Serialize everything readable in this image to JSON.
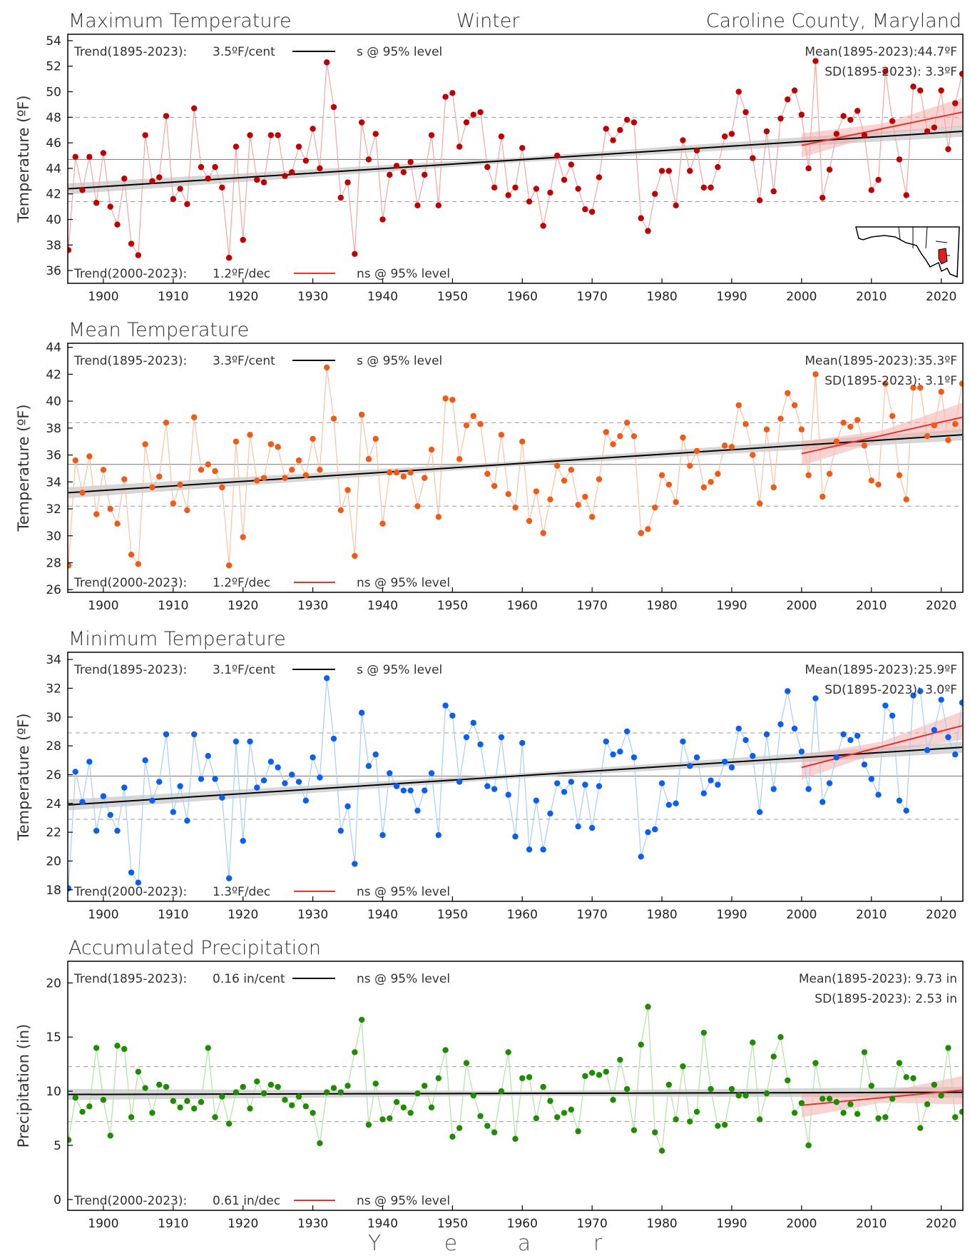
{
  "header": {
    "season": "Winter",
    "location": "Caroline County, Maryland"
  },
  "xlabel_letters": [
    "Y",
    "e",
    "a",
    "r"
  ],
  "chart_data": [
    {
      "type": "line",
      "title": "Maximum Temperature",
      "ylabel": "Temperature (ºF)",
      "ylim": [
        35,
        54.5
      ],
      "yticks": [
        36,
        38,
        40,
        42,
        44,
        46,
        48,
        50,
        52,
        54
      ],
      "xlim": [
        1895,
        2023
      ],
      "xticks": [
        1900,
        1910,
        1920,
        1930,
        1940,
        1950,
        1960,
        1970,
        1980,
        1990,
        2000,
        2010,
        2020
      ],
      "color": "#c00000",
      "line_color": "#f2a6a6",
      "start_year": 1895,
      "mean": 44.7,
      "sd": 3.3,
      "trend_long": {
        "label": "Trend(1895-2023):",
        "value": "3.5ºF/cent",
        "sig": "s @ 95% level",
        "y_start": 42.4,
        "y_end": 46.9
      },
      "trend_short": {
        "label": "Trend(2000-2023):",
        "value": "1.2ºF/dec",
        "sig": "ns @ 95% level",
        "y_start": 45.8,
        "y_end": 48.4
      },
      "mean_text": "Mean(1895-2023):44.7ºF",
      "sd_text": "SD(1895-2023): 3.3ºF",
      "show_map": true,
      "values": [
        37.6,
        44.9,
        42.3,
        44.9,
        41.3,
        45.2,
        41.0,
        39.6,
        43.2,
        38.1,
        37.2,
        46.6,
        43.0,
        43.3,
        48.1,
        41.6,
        42.4,
        41.2,
        48.7,
        44.1,
        43.2,
        44.1,
        42.5,
        37.0,
        45.7,
        38.4,
        46.6,
        43.1,
        42.9,
        46.6,
        46.6,
        43.4,
        43.7,
        45.7,
        44.6,
        47.1,
        44.0,
        52.3,
        48.8,
        41.7,
        42.9,
        37.3,
        47.6,
        44.7,
        46.7,
        40.0,
        43.5,
        44.2,
        43.7,
        44.5,
        41.1,
        43.5,
        46.6,
        41.1,
        49.6,
        49.9,
        45.7,
        47.6,
        48.2,
        48.4,
        44.1,
        42.5,
        46.5,
        41.9,
        42.5,
        45.6,
        41.4,
        42.4,
        39.5,
        42.1,
        45.0,
        43.1,
        44.3,
        42.4,
        40.8,
        40.6,
        43.3,
        47.1,
        46.2,
        47.0,
        47.8,
        47.6,
        40.1,
        39.1,
        42.0,
        43.8,
        43.8,
        41.1,
        46.2,
        43.8,
        45.4,
        42.5,
        42.5,
        44.1,
        46.5,
        46.7,
        50.0,
        48.4,
        44.8,
        41.5,
        46.9,
        42.2,
        47.9,
        49.4,
        50.1,
        48.2,
        44.0,
        52.4,
        41.7,
        43.9,
        46.7,
        48.1,
        47.8,
        48.5,
        46.6,
        42.3,
        43.1,
        51.6,
        47.7,
        44.7,
        41.9,
        50.4,
        50.1,
        46.9,
        47.2,
        50.1,
        45.5,
        49.1,
        51.4
      ]
    },
    {
      "type": "line",
      "title": "Mean Temperature",
      "ylabel": "Temperature (ºF)",
      "ylim": [
        25.8,
        44.3
      ],
      "yticks": [
        26,
        28,
        30,
        32,
        34,
        36,
        38,
        40,
        42,
        44
      ],
      "xlim": [
        1895,
        2023
      ],
      "xticks": [
        1900,
        1910,
        1920,
        1930,
        1940,
        1950,
        1960,
        1970,
        1980,
        1990,
        2000,
        2010,
        2020
      ],
      "color": "#f05a14",
      "line_color": "#f9c2a6",
      "start_year": 1895,
      "mean": 35.3,
      "sd": 3.1,
      "trend_long": {
        "label": "Trend(1895-2023):",
        "value": "3.3ºF/cent",
        "sig": "s @ 95% level",
        "y_start": 33.2,
        "y_end": 37.5
      },
      "trend_short": {
        "label": "Trend(2000-2023):",
        "value": "1.2ºF/dec",
        "sig": "ns @ 95% level",
        "y_start": 36.1,
        "y_end": 38.8
      },
      "mean_text": "Mean(1895-2023):35.3ºF",
      "sd_text": "SD(1895-2023): 3.1ºF",
      "show_map": false,
      "values": [
        27.8,
        35.6,
        33.2,
        35.9,
        31.6,
        34.9,
        32.0,
        30.9,
        34.2,
        28.6,
        27.9,
        36.8,
        33.6,
        34.4,
        38.4,
        32.4,
        33.8,
        31.9,
        38.8,
        34.9,
        35.3,
        34.8,
        33.6,
        27.8,
        37.0,
        29.9,
        37.5,
        34.1,
        34.3,
        36.8,
        36.6,
        34.3,
        34.9,
        35.6,
        34.5,
        37.2,
        34.9,
        42.5,
        38.7,
        31.9,
        33.4,
        28.5,
        39.0,
        35.7,
        37.2,
        30.9,
        34.7,
        34.7,
        34.4,
        34.7,
        32.2,
        34.3,
        36.4,
        31.4,
        40.2,
        40.1,
        35.7,
        38.2,
        38.9,
        38.3,
        34.6,
        33.7,
        37.5,
        33.1,
        32.1,
        37.0,
        31.1,
        33.3,
        30.2,
        32.7,
        35.2,
        34.1,
        34.9,
        32.3,
        32.9,
        31.4,
        34.2,
        37.7,
        36.8,
        37.4,
        38.4,
        37.4,
        30.2,
        30.5,
        32.1,
        34.5,
        33.8,
        32.5,
        37.3,
        35.2,
        36.3,
        33.6,
        34.0,
        34.6,
        36.7,
        36.6,
        39.7,
        38.3,
        36.0,
        32.4,
        37.9,
        33.6,
        38.7,
        40.6,
        39.7,
        37.9,
        34.5,
        42.0,
        32.9,
        34.6,
        37.0,
        38.4,
        38.1,
        38.6,
        36.7,
        34.1,
        33.8,
        41.3,
        38.9,
        34.5,
        32.7,
        41.0,
        41.0,
        37.4,
        38.2,
        40.7,
        37.1,
        38.3,
        41.3
      ]
    },
    {
      "type": "line",
      "title": "Minimum Temperature",
      "ylabel": "Temperature (ºF)",
      "ylim": [
        17.2,
        34.5
      ],
      "yticks": [
        18,
        20,
        22,
        24,
        26,
        28,
        30,
        32,
        34
      ],
      "xlim": [
        1895,
        2023
      ],
      "xticks": [
        1900,
        1910,
        1920,
        1930,
        1940,
        1950,
        1960,
        1970,
        1980,
        1990,
        2000,
        2010,
        2020
      ],
      "color": "#0a5ff0",
      "line_color": "#a9cdf3",
      "start_year": 1895,
      "mean": 25.9,
      "sd": 3.0,
      "trend_long": {
        "label": "Trend(1895-2023):",
        "value": "3.1ºF/cent",
        "sig": "s @ 95% level",
        "y_start": 23.9,
        "y_end": 27.9
      },
      "trend_short": {
        "label": "Trend(2000-2023):",
        "value": "1.3ºF/dec",
        "sig": "ns @ 95% level",
        "y_start": 26.5,
        "y_end": 29.4
      },
      "mean_text": "Mean(1895-2023):25.9ºF",
      "sd_text": "SD(1895-2023): 3.0ºF",
      "show_map": false,
      "values": [
        18.1,
        26.2,
        24.1,
        26.9,
        22.1,
        24.5,
        23.2,
        22.1,
        25.1,
        19.2,
        18.5,
        27.0,
        24.2,
        25.5,
        28.8,
        23.4,
        25.2,
        22.8,
        28.8,
        25.7,
        27.3,
        25.7,
        24.4,
        18.8,
        28.3,
        21.4,
        28.3,
        25.1,
        25.6,
        26.9,
        26.5,
        25.4,
        26.0,
        25.5,
        24.2,
        27.2,
        25.8,
        32.7,
        28.5,
        22.1,
        23.8,
        19.8,
        30.3,
        26.6,
        27.4,
        21.8,
        26.1,
        25.2,
        24.9,
        24.9,
        23.5,
        24.9,
        26.1,
        21.8,
        30.8,
        30.1,
        25.5,
        28.6,
        29.6,
        28.1,
        25.2,
        25.0,
        28.6,
        24.6,
        21.7,
        28.2,
        20.8,
        24.2,
        20.8,
        23.3,
        25.4,
        24.8,
        25.5,
        22.4,
        25.3,
        22.3,
        25.2,
        28.3,
        27.4,
        27.6,
        29.0,
        27.2,
        20.3,
        22.0,
        22.2,
        25.4,
        23.9,
        24.0,
        28.3,
        26.6,
        27.2,
        24.7,
        25.6,
        25.3,
        26.9,
        26.5,
        29.2,
        28.4,
        27.3,
        23.4,
        28.8,
        25.0,
        29.5,
        31.8,
        29.2,
        27.6,
        25.0,
        31.3,
        24.1,
        25.4,
        27.2,
        28.8,
        28.4,
        28.7,
        26.7,
        25.7,
        24.6,
        30.8,
        30.1,
        24.2,
        23.5,
        31.5,
        31.8,
        27.7,
        29.1,
        31.2,
        28.6,
        27.4,
        31.0
      ]
    },
    {
      "type": "line",
      "title": "Accumulated Precipitation",
      "ylabel": "Precipitation (in)",
      "ylim": [
        -1,
        22
      ],
      "yticks": [
        0,
        5,
        10,
        15,
        20
      ],
      "xlim": [
        1895,
        2023
      ],
      "xticks": [
        1900,
        1910,
        1920,
        1930,
        1940,
        1950,
        1960,
        1970,
        1980,
        1990,
        2000,
        2010,
        2020
      ],
      "color": "#1e8c00",
      "line_color": "#b6dfa8",
      "start_year": 1895,
      "mean": 9.73,
      "sd": 2.53,
      "trend_long": {
        "label": "Trend(1895-2023):",
        "value": "0.16 in/cent",
        "sig": "ns @ 95% level",
        "y_start": 9.7,
        "y_end": 9.9
      },
      "trend_short": {
        "label": "Trend(2000-2023):",
        "value": "0.61 in/dec",
        "sig": "ns @ 95% level",
        "y_start": 8.7,
        "y_end": 10.1
      },
      "mean_text": "Mean(1895-2023): 9.73 in",
      "sd_text": "SD(1895-2023): 2.53 in",
      "show_map": false,
      "values": [
        5.5,
        9.4,
        8.1,
        8.6,
        14.0,
        9.2,
        5.9,
        14.2,
        13.9,
        7.6,
        11.8,
        10.3,
        8.0,
        10.6,
        10.4,
        9.1,
        8.5,
        9.1,
        8.4,
        9.0,
        14.0,
        7.6,
        9.5,
        7.0,
        9.9,
        10.4,
        8.4,
        10.9,
        9.8,
        10.6,
        10.4,
        9.2,
        8.7,
        9.5,
        8.6,
        8.0,
        5.2,
        9.9,
        10.3,
        9.9,
        10.5,
        13.6,
        16.6,
        6.9,
        10.7,
        7.4,
        7.5,
        9.0,
        8.5,
        8.0,
        9.8,
        10.5,
        8.5,
        11.2,
        13.8,
        5.8,
        6.6,
        12.6,
        9.6,
        7.7,
        6.8,
        6.2,
        10.0,
        13.6,
        5.6,
        11.2,
        11.3,
        7.5,
        10.4,
        9.1,
        7.6,
        8.0,
        8.3,
        6.3,
        11.4,
        11.7,
        11.5,
        11.8,
        9.2,
        12.9,
        10.2,
        6.4,
        14.3,
        17.8,
        6.2,
        4.5,
        10.6,
        7.4,
        12.3,
        7.2,
        8.1,
        15.4,
        10.2,
        6.8,
        6.9,
        10.2,
        9.6,
        9.6,
        14.5,
        7.4,
        9.8,
        13.2,
        15.0,
        11.0,
        8.0,
        8.9,
        5.0,
        12.6,
        9.3,
        9.3,
        9.0,
        8.0,
        8.8,
        7.9,
        13.6,
        10.5,
        7.5,
        7.6,
        9.3,
        12.6,
        11.3,
        11.2,
        6.6,
        8.8,
        10.6,
        9.6,
        14.0,
        7.6,
        8.1
      ]
    }
  ]
}
